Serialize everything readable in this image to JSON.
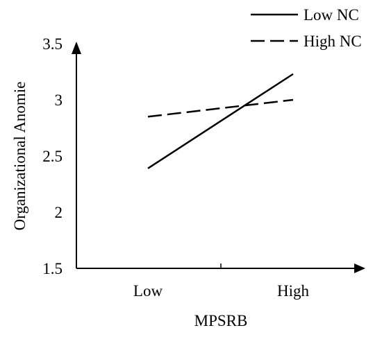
{
  "chart_data": {
    "type": "line",
    "categories": [
      "Low",
      "High"
    ],
    "xlabel": "MPSRB",
    "ylabel": "Organizational Anomie",
    "ylim": [
      1.5,
      3.5
    ],
    "yticks": [
      "1.5",
      "2",
      "2.5",
      "3",
      "3.5"
    ],
    "grid": false,
    "legend_position": "top-right",
    "series": [
      {
        "name": "Low NC",
        "values": [
          2.39,
          3.23
        ],
        "line_style": "solid",
        "color": "#000000"
      },
      {
        "name": "High NC",
        "values": [
          2.85,
          3.0
        ],
        "line_style": "dashed",
        "color": "#000000"
      }
    ]
  }
}
